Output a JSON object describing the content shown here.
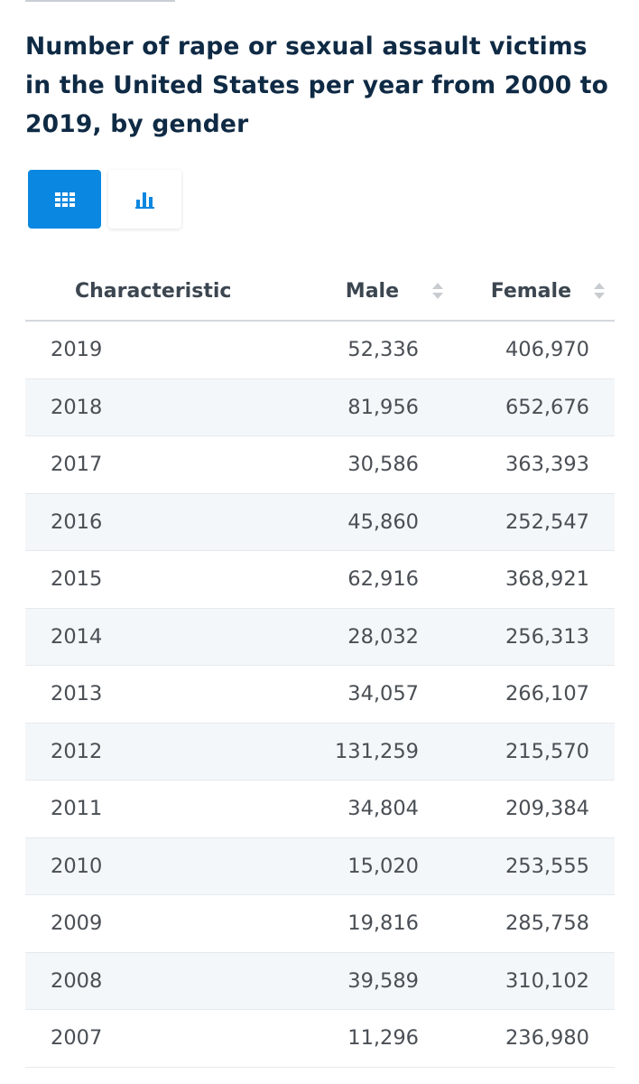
{
  "title": "Number of rape or sexual assault victims in the United States per year from 2000 to 2019, by gender",
  "view_toggle": {
    "table_icon": "table-grid-icon",
    "chart_icon": "bar-chart-icon",
    "active": "table"
  },
  "colors": {
    "accent": "#0a87e0",
    "title": "#0f2a44",
    "row_stripe": "#f4f7fa"
  },
  "chart_data": {
    "type": "table",
    "title": "Number of rape or sexual assault victims in the United States per year from 2000 to 2019, by gender",
    "columns": [
      "Characteristic",
      "Male",
      "Female"
    ],
    "rows": [
      {
        "year": "2019",
        "male": "52,336",
        "female": "406,970"
      },
      {
        "year": "2018",
        "male": "81,956",
        "female": "652,676"
      },
      {
        "year": "2017",
        "male": "30,586",
        "female": "363,393"
      },
      {
        "year": "2016",
        "male": "45,860",
        "female": "252,547"
      },
      {
        "year": "2015",
        "male": "62,916",
        "female": "368,921"
      },
      {
        "year": "2014",
        "male": "28,032",
        "female": "256,313"
      },
      {
        "year": "2013",
        "male": "34,057",
        "female": "266,107"
      },
      {
        "year": "2012",
        "male": "131,259",
        "female": "215,570"
      },
      {
        "year": "2011",
        "male": "34,804",
        "female": "209,384"
      },
      {
        "year": "2010",
        "male": "15,020",
        "female": "253,555"
      },
      {
        "year": "2009",
        "male": "19,816",
        "female": "285,758"
      },
      {
        "year": "2008",
        "male": "39,589",
        "female": "310,102"
      },
      {
        "year": "2007",
        "male": "11,296",
        "female": "236,980"
      }
    ]
  }
}
